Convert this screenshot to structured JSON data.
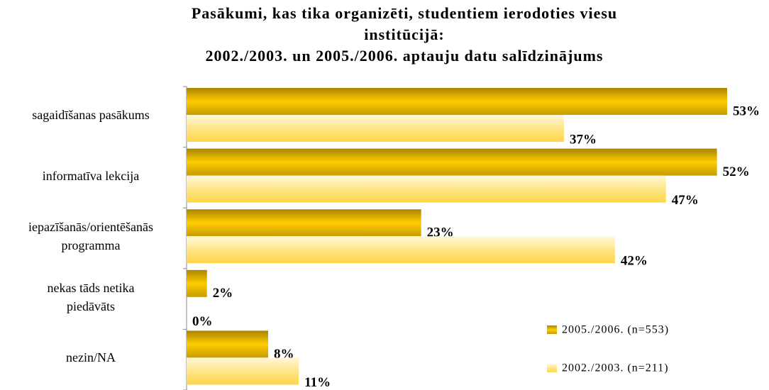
{
  "chart_data": {
    "type": "bar",
    "orientation": "horizontal",
    "title": "Pasākumi, kas tika organizēti, studentiem ierodoties viesu\ninstitūcijā:\n2002./2003. un 2005./2006. aptauju datu salīdzinājums",
    "categories": [
      "sagaidīšanas pasākums",
      "informatīva lekcija",
      "iepazīšanās/orientēšanās\nprogramma",
      "nekas tāds netika\npiedāvāts",
      "nezin/NA"
    ],
    "series": [
      {
        "name": "2005./2006. (n=553)",
        "color": "#d4a800",
        "values": [
          53,
          52,
          23,
          2,
          8
        ],
        "value_labels": [
          "53%",
          "52%",
          "23%",
          "2%",
          "8%"
        ]
      },
      {
        "name": "2002./2003. (n=211)",
        "color": "#ffe680",
        "values": [
          37,
          47,
          42,
          0,
          11
        ],
        "value_labels": [
          "37%",
          "47%",
          "42%",
          "0%",
          "11%"
        ]
      }
    ],
    "legend": "bottom-right"
  }
}
